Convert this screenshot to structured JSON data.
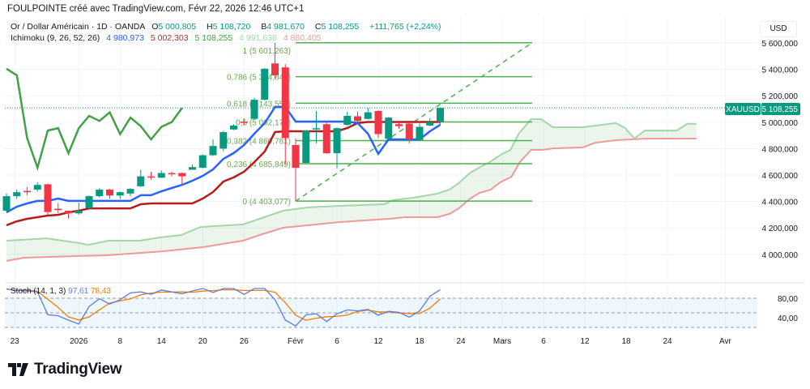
{
  "header": {
    "attribution": "FOULPOINTE créé avec TradingView.com, Févr 22, 2026 12:46 UTC+1"
  },
  "legend": {
    "symbol_desc": "Or / Dollar Américain · 1D · OANDA",
    "open_label": "O",
    "open": "5 000,805",
    "high_label": "H",
    "high": "5 108,720",
    "low_label": "B",
    "low": "4 981,670",
    "close_label": "C",
    "close": "5 108,255",
    "change": "+111,765 (+2,24%)",
    "ichimoku_name": "Ichimoku (9, 26, 52, 26)",
    "ichimoku_values": [
      "4 980,973",
      "5 002,303",
      "5 108,255",
      "4 991,638",
      "4 880,405"
    ]
  },
  "price_axis": {
    "currency": "USD",
    "ticks": [
      {
        "value": 5600,
        "label": "5 600,000"
      },
      {
        "value": 5400,
        "label": "5 400,000"
      },
      {
        "value": 5200,
        "label": "5 200,000"
      },
      {
        "value": 5000,
        "label": "5 000,000"
      },
      {
        "value": 4800,
        "label": "4 800,000"
      },
      {
        "value": 4600,
        "label": "4 600,000"
      },
      {
        "value": 4400,
        "label": "4 400,000"
      },
      {
        "value": 4200,
        "label": "4 200,000"
      },
      {
        "value": 4000,
        "label": "4 000,000"
      }
    ],
    "last_symbol": "XAUUSD",
    "last_price": "5 108,255",
    "last_value": 5108.255
  },
  "stoch": {
    "name": "Stoch (14, 1, 3)",
    "k_value": "97,61",
    "d_value": "78,43",
    "ticks": [
      {
        "value": 80,
        "label": "80,00"
      },
      {
        "value": 40,
        "label": "40,00"
      }
    ],
    "bands": [
      80,
      50,
      20
    ],
    "k": [
      99,
      96,
      95,
      93,
      46,
      44,
      35,
      27,
      63,
      79,
      68,
      77,
      91,
      93,
      88,
      97,
      93,
      89,
      95,
      100,
      92,
      100,
      100,
      88,
      100,
      100,
      77,
      35,
      23,
      46,
      48,
      32,
      48,
      56,
      54,
      57,
      45,
      53,
      51,
      41,
      54,
      84,
      97.61
    ]
  },
  "logo": {
    "text": "TradingView"
  },
  "colors": {
    "up": "#089981",
    "down": "#f23645",
    "tenkan": "#2962ff",
    "kijun": "#b71c1c",
    "chikou": "#43a047",
    "spanA": "#a5d6a7",
    "spanB": "#ef9a9a",
    "fib": "#4caf50",
    "stochK": "#5b7fe0",
    "stochD": "#f57c00"
  },
  "chart_data": {
    "type": "candlestick",
    "title": "Or / Dollar Américain · 1D · OANDA",
    "ylim": [
      3900,
      5700
    ],
    "x_ticks": [
      {
        "bar": 0.8,
        "label": "23"
      },
      {
        "bar": 7,
        "label": "2026"
      },
      {
        "bar": 11,
        "label": "8"
      },
      {
        "bar": 15,
        "label": "14"
      },
      {
        "bar": 19,
        "label": "20"
      },
      {
        "bar": 23,
        "label": "26"
      },
      {
        "bar": 28,
        "label": "Févr"
      },
      {
        "bar": 32,
        "label": "6"
      },
      {
        "bar": 36,
        "label": "12"
      },
      {
        "bar": 40,
        "label": "18"
      },
      {
        "bar": 44,
        "label": "24"
      },
      {
        "bar": 48,
        "label": "Mars"
      },
      {
        "bar": 52,
        "label": "6"
      },
      {
        "bar": 56,
        "label": "12"
      },
      {
        "bar": 60,
        "label": "18"
      },
      {
        "bar": 64,
        "label": "24"
      },
      {
        "bar": 69.6,
        "label": "Avr"
      }
    ],
    "ohlc": [
      [
        4330,
        4460,
        4320,
        4440
      ],
      [
        4440,
        4490,
        4420,
        4470
      ],
      [
        4480,
        4510,
        4445,
        4470
      ],
      [
        4490,
        4545,
        4475,
        4525
      ],
      [
        4530,
        4535,
        4300,
        4320
      ],
      [
        4345,
        4390,
        4310,
        4335
      ],
      [
        4330,
        4330,
        4270,
        4310
      ],
      [
        4310,
        4390,
        4300,
        4330
      ],
      [
        4350,
        4445,
        4345,
        4440
      ],
      [
        4440,
        4500,
        4430,
        4490
      ],
      [
        4490,
        4495,
        4420,
        4445
      ],
      [
        4445,
        4475,
        4420,
        4470
      ],
      [
        4460,
        4500,
        4440,
        4495
      ],
      [
        4515,
        4640,
        4510,
        4590
      ],
      [
        4590,
        4625,
        4565,
        4585
      ],
      [
        4580,
        4635,
        4580,
        4615
      ],
      [
        4615,
        4625,
        4590,
        4610
      ],
      [
        4615,
        4620,
        4530,
        4590
      ],
      [
        4640,
        4680,
        4640,
        4660
      ],
      [
        4655,
        4755,
        4650,
        4750
      ],
      [
        4750,
        4870,
        4745,
        4820
      ],
      [
        4800,
        4935,
        4780,
        4925
      ],
      [
        4945,
        4985,
        4940,
        4975
      ],
      [
        5005,
        5030,
        4975,
        4995
      ],
      [
        5025,
        5185,
        5020,
        5170
      ],
      [
        5170,
        5410,
        5165,
        5405
      ],
      [
        5445,
        5601,
        5330,
        5355
      ],
      [
        5415,
        5440,
        4680,
        4880
      ],
      [
        4827,
        4876,
        4403,
        4655
      ],
      [
        4692,
        4940,
        4690,
        4937
      ],
      [
        4950,
        5085,
        4840,
        4955
      ],
      [
        4985,
        5010,
        4760,
        4765
      ],
      [
        4765,
        4960,
        4650,
        4955
      ],
      [
        4980,
        5080,
        4975,
        5048
      ],
      [
        5045,
        5080,
        5005,
        5010
      ],
      [
        5025,
        5110,
        5020,
        5075
      ],
      [
        5085,
        5090,
        4880,
        4910
      ],
      [
        4875,
        5040,
        4870,
        5035
      ],
      [
        4985,
        5010,
        4950,
        4970
      ],
      [
        4990,
        5000,
        4840,
        4870
      ],
      [
        4865,
        4990,
        4860,
        4965
      ],
      [
        4975,
        5030,
        4970,
        5001
      ],
      [
        5000.805,
        5108.72,
        4981.67,
        5108.255
      ]
    ],
    "tenkan": [
      4318,
      4361,
      4385,
      4404,
      4404,
      4422,
      4404,
      4404,
      4404,
      4404,
      4404,
      4404,
      4404,
      4447,
      4447,
      4477,
      4502,
      4526,
      4557,
      4594,
      4643,
      4723,
      4766,
      4827,
      4913,
      4993,
      5115,
      5115,
      5005,
      5005,
      5005,
      5005,
      5005,
      5005,
      4993,
      4913,
      4760,
      4870,
      4870,
      4870,
      4870,
      4931,
      4981
    ],
    "kijun": [
      4220,
      4250,
      4269,
      4281,
      4293,
      4299,
      4318,
      4330,
      4348,
      4348,
      4348,
      4348,
      4348,
      4379,
      4385,
      4385,
      4385,
      4385,
      4385,
      4422,
      4471,
      4551,
      4582,
      4625,
      4698,
      4778,
      4925,
      4931,
      4931,
      4931,
      4931,
      4931,
      4931,
      4956,
      4993,
      5002,
      5002,
      5002,
      5002,
      5002,
      5002,
      5002,
      5002
    ],
    "chikou_shift": 25,
    "spanA": [
      [
        0,
        4103
      ],
      [
        3.9,
        4121
      ],
      [
        7,
        4085
      ],
      [
        7.9,
        4072
      ],
      [
        9.9,
        4103
      ],
      [
        12.9,
        4103
      ],
      [
        14.9,
        4128
      ],
      [
        16.9,
        4146
      ],
      [
        18.8,
        4207
      ],
      [
        19.9,
        4213
      ],
      [
        22.9,
        4226
      ],
      [
        24.5,
        4269
      ],
      [
        26.8,
        4330
      ],
      [
        29.2,
        4355
      ],
      [
        32.3,
        4367
      ],
      [
        36.6,
        4379
      ],
      [
        37.4,
        4410
      ],
      [
        39.4,
        4428
      ],
      [
        41.7,
        4459
      ],
      [
        42.9,
        4490
      ],
      [
        43.8,
        4539
      ],
      [
        44.9,
        4618
      ],
      [
        46,
        4667
      ],
      [
        46.8,
        4698
      ],
      [
        48,
        4760
      ],
      [
        48.8,
        4790
      ],
      [
        49.6,
        4913
      ],
      [
        50.8,
        5023
      ],
      [
        51.8,
        5023
      ],
      [
        52.9,
        4962
      ],
      [
        55.8,
        4962
      ],
      [
        59,
        4993
      ],
      [
        59.9,
        4956
      ],
      [
        60.8,
        4876
      ],
      [
        61.8,
        4937
      ],
      [
        64.9,
        4937
      ],
      [
        65.9,
        4987
      ],
      [
        66.8,
        4987
      ]
    ],
    "spanB": [
      [
        0,
        3950
      ],
      [
        1.7,
        3974
      ],
      [
        7,
        3987
      ],
      [
        9.9,
        3993
      ],
      [
        15.1,
        4023
      ],
      [
        19,
        4054
      ],
      [
        22.9,
        4103
      ],
      [
        24.5,
        4146
      ],
      [
        26.8,
        4201
      ],
      [
        32.3,
        4244
      ],
      [
        37,
        4269
      ],
      [
        38.6,
        4281
      ],
      [
        41.7,
        4281
      ],
      [
        42.9,
        4306
      ],
      [
        43.8,
        4348
      ],
      [
        44.9,
        4422
      ],
      [
        45.8,
        4465
      ],
      [
        46.9,
        4490
      ],
      [
        47.8,
        4545
      ],
      [
        48.9,
        4588
      ],
      [
        49.7,
        4698
      ],
      [
        50.8,
        4790
      ],
      [
        51.9,
        4790
      ],
      [
        52.9,
        4802
      ],
      [
        55.8,
        4809
      ],
      [
        57,
        4845
      ],
      [
        59,
        4864
      ],
      [
        62.1,
        4876
      ],
      [
        66.8,
        4876
      ]
    ],
    "fibonacci": {
      "from_bar": 28,
      "to_bar": 50.9,
      "low": 4403.077,
      "high": 5601.263,
      "levels": [
        {
          "ratio": 1,
          "price": 5601.263,
          "label": "1 (5 601,263)"
        },
        {
          "ratio": 0.786,
          "price": 5344.847,
          "label": "0,786 (5 344,847)"
        },
        {
          "ratio": 0.618,
          "price": 5143.556,
          "label": "0,618 (5 143,556)"
        },
        {
          "ratio": 0.5,
          "price": 5002.17,
          "label": "0,5 (5 002,170)"
        },
        {
          "ratio": 0.382,
          "price": 4860.781,
          "label": "0,382 (4 860,781)"
        },
        {
          "ratio": 0.236,
          "price": 4685.849,
          "label": "0,236 (4 685,849)"
        },
        {
          "ratio": 0,
          "price": 4403.077,
          "label": "0 (4 403,077)"
        }
      ]
    }
  }
}
